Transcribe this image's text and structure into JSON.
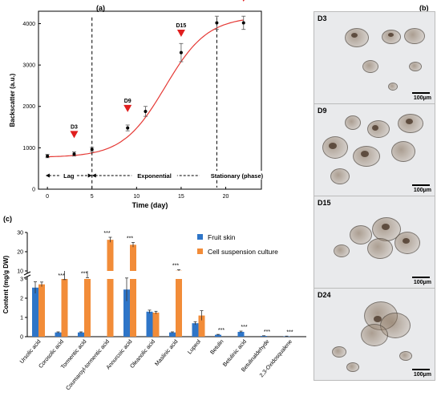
{
  "panel_labels": {
    "a": "(a)",
    "b": "(b)",
    "c": "(c)"
  },
  "chart_data": [
    {
      "type": "line",
      "ylabel": "Backscatter (a.u.)",
      "xlabel": "Time (day)",
      "xlim": [
        -1,
        24
      ],
      "ylim": [
        0,
        4300
      ],
      "xticks": [
        0,
        5,
        10,
        15,
        20
      ],
      "yticks": [
        0,
        1000,
        2000,
        3000,
        4000
      ],
      "points": [
        {
          "x": 0,
          "y": 800,
          "err": 40
        },
        {
          "x": 3,
          "y": 850,
          "err": 50
        },
        {
          "x": 5,
          "y": 960,
          "err": 50
        },
        {
          "x": 9,
          "y": 1480,
          "err": 70
        },
        {
          "x": 11,
          "y": 1880,
          "err": 120
        },
        {
          "x": 15,
          "y": 3300,
          "err": 220
        },
        {
          "x": 19,
          "y": 4020,
          "err": 160
        },
        {
          "x": 22,
          "y": 4020,
          "err": 160
        }
      ],
      "fit_color": "#e53935",
      "markers": [
        {
          "label": "D3",
          "x": 3,
          "y": 850
        },
        {
          "label": "D9",
          "x": 9,
          "y": 1480
        },
        {
          "label": "D15",
          "x": 15,
          "y": 3300
        },
        {
          "label": "D24",
          "x": 22,
          "y": 4020
        }
      ],
      "phase_dividers": [
        5,
        19
      ],
      "phases": [
        {
          "label": "Lag",
          "from": -0.2,
          "to": 5
        },
        {
          "label": "Exponential",
          "from": 5,
          "to": 19
        },
        {
          "label": "Stationary  (phase)",
          "from": 19,
          "to": 23.5
        }
      ]
    },
    {
      "type": "bar",
      "ylabel": "Content (mg/g DW)",
      "categories": [
        "Ursolic acid",
        "Corosolic acid",
        "Tormentic acid",
        "Coumaroyl-tormentic acid",
        "Annurcoic acid",
        "Oleanolic acid",
        "Maslinic acid",
        "Lupeol",
        "Betulin",
        "Betulinic acid",
        "Betulinaldehyde",
        "2,3-Oxidosqualene"
      ],
      "lower_axis": {
        "ylim": [
          0,
          3
        ],
        "ticks": [
          0,
          1,
          2,
          3
        ]
      },
      "upper_axis": {
        "ylim": [
          10,
          30
        ],
        "ticks": [
          10,
          20,
          30
        ]
      },
      "series": [
        {
          "name": "Fruit skin",
          "color": "#2e75c8",
          "values": [
            2.55,
            0.22,
            0.22,
            0,
            2.45,
            1.3,
            0.22,
            0.7,
            0.1,
            0.25,
            0.04,
            0.02
          ],
          "err": [
            0.3,
            0.03,
            0.03,
            0,
            0.6,
            0.08,
            0.03,
            0.08,
            0.02,
            0.04,
            0.01,
            0.01
          ]
        },
        {
          "name": "Cell suspension culture",
          "color": "#f28c38",
          "values": [
            2.72,
            5.2,
            6.0,
            26.2,
            23.6,
            1.25,
            10.1,
            1.1,
            0,
            0,
            0,
            0
          ],
          "err": [
            0.12,
            0.3,
            0.5,
            1.3,
            1.2,
            0.07,
            0.5,
            0.25,
            0,
            0,
            0,
            0
          ]
        }
      ],
      "significance": [
        "",
        "***",
        "***",
        "***",
        "***",
        "",
        "***",
        "",
        "***",
        "***",
        "***",
        "***"
      ]
    }
  ],
  "micrographs": [
    {
      "label": "D3",
      "scale": "100μm"
    },
    {
      "label": "D9",
      "scale": "100μm"
    },
    {
      "label": "D15",
      "scale": "100μm"
    },
    {
      "label": "D24",
      "scale": "100μm"
    }
  ]
}
